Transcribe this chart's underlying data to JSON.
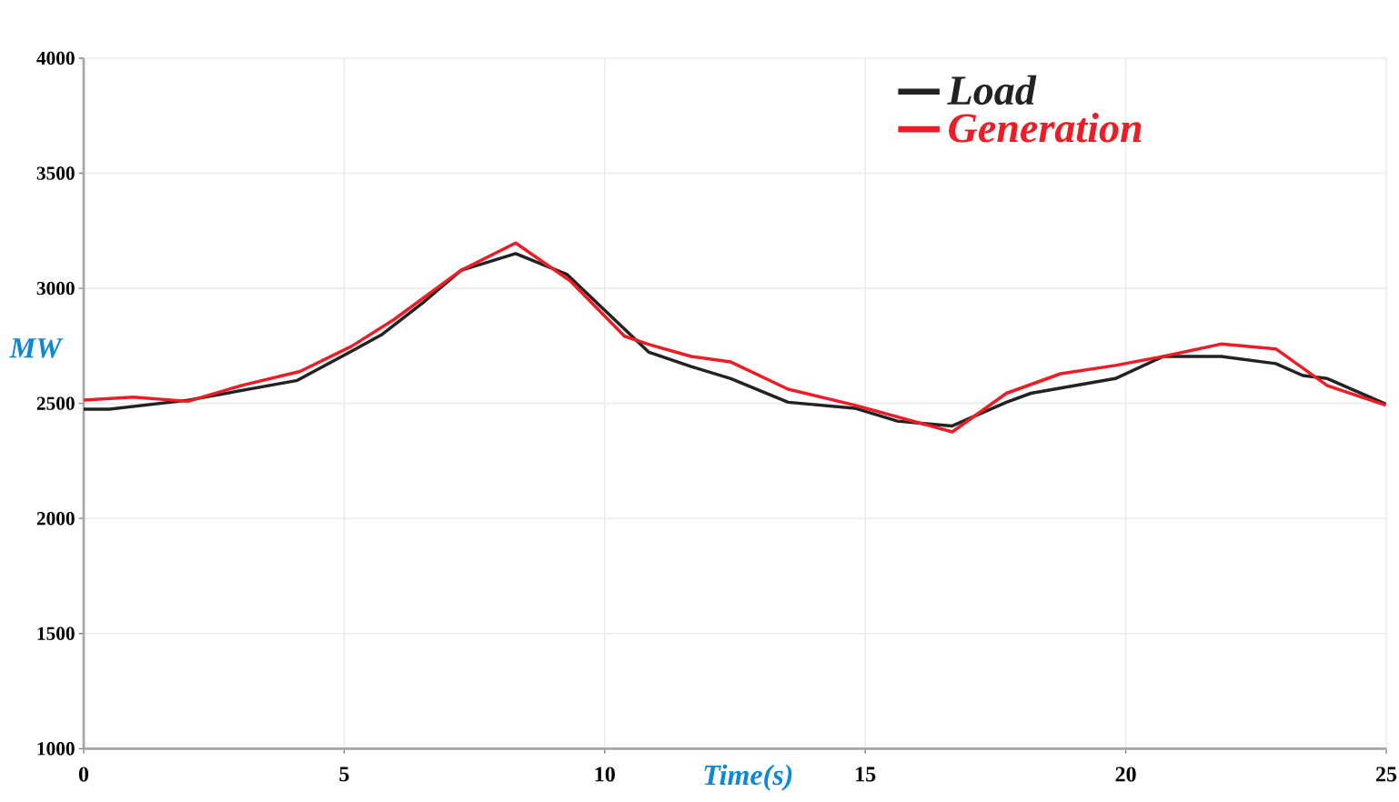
{
  "chart_data": {
    "type": "line",
    "xlabel": "Time(s)",
    "ylabel": "MW",
    "xlim": [
      0,
      25
    ],
    "xticks": [
      0,
      5,
      10,
      15,
      20,
      25
    ],
    "ylim": [
      1000,
      4000
    ],
    "yticks": [
      1000,
      1500,
      2000,
      2500,
      3000,
      3500,
      4000
    ],
    "grid": true,
    "legend": "top",
    "line_style": "solid",
    "marker": "none",
    "series": [
      {
        "name": "Load",
        "color": "#222222",
        "x": [
          0,
          0.49,
          2.0,
          4.1,
          5.14,
          5.73,
          6.54,
          7.24,
          8.29,
          9.28,
          10.85,
          11.66,
          12.42,
          13.52,
          14.8,
          15.62,
          16.67,
          17.71,
          18.18,
          19.8,
          20.72,
          21.83,
          22.88,
          23.4,
          23.87,
          24.99
        ],
        "values": [
          2475,
          2475,
          2514,
          2600,
          2727,
          2800,
          2943,
          3078,
          3151,
          3060,
          2722,
          2660,
          2608,
          2505,
          2479,
          2423,
          2402,
          2505,
          2544,
          2608,
          2704,
          2704,
          2673,
          2621,
          2608,
          2497
        ]
      },
      {
        "name": "Generation",
        "color": "#ee1c25",
        "x": [
          0,
          0.95,
          2.0,
          3.05,
          4.15,
          5.14,
          5.96,
          7.24,
          8.29,
          9.33,
          10.38,
          10.85,
          11.66,
          12.42,
          13.52,
          14.8,
          16.67,
          17.71,
          18.75,
          19.8,
          20.72,
          21.83,
          22.88,
          23.87,
          24.99
        ],
        "values": [
          2514,
          2527,
          2509,
          2579,
          2639,
          2748,
          2865,
          3078,
          3197,
          3034,
          2792,
          2756,
          2704,
          2680,
          2562,
          2492,
          2376,
          2544,
          2629,
          2665,
          2704,
          2758,
          2737,
          2577,
          2492
        ]
      }
    ]
  }
}
